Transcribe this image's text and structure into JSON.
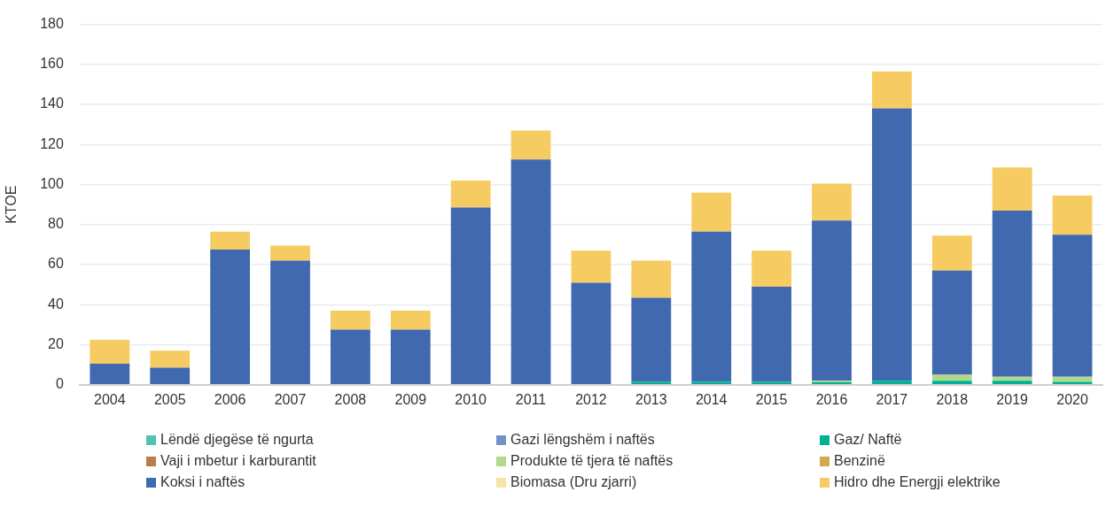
{
  "chart_data": {
    "type": "bar",
    "stacked": true,
    "ylabel": "KTOE",
    "categories": [
      "2004",
      "2005",
      "2006",
      "2007",
      "2008",
      "2009",
      "2010",
      "2011",
      "2012",
      "2013",
      "2014",
      "2015",
      "2016",
      "2017",
      "2018",
      "2019",
      "2020"
    ],
    "ylim": [
      0,
      180
    ],
    "yticks": [
      0,
      20,
      40,
      60,
      80,
      100,
      120,
      140,
      160,
      180
    ],
    "grid": "y",
    "legend": "bottom",
    "series": [
      {
        "name": "Lëndë djegëse të ngurta",
        "color": "#4ec5b3",
        "values": [
          0,
          0,
          0,
          0,
          0,
          0,
          0,
          0,
          0,
          0,
          0,
          0,
          0,
          0,
          0,
          0,
          0
        ]
      },
      {
        "name": "Gazi lëngshëm i naftës",
        "color": "#7393c8",
        "values": [
          0,
          0,
          0,
          0,
          0,
          0,
          0,
          0,
          0,
          0,
          0,
          0,
          0,
          0,
          0,
          0,
          0
        ]
      },
      {
        "name": "Gaz/ Naftë",
        "color": "#00b294",
        "values": [
          0,
          0,
          0,
          0,
          0.3,
          0.3,
          0.3,
          0.3,
          0.3,
          1.5,
          1.5,
          1.5,
          1.2,
          2,
          2,
          2,
          1.5
        ]
      },
      {
        "name": "Vaji i mbetur i karburantit",
        "color": "#b97d4b",
        "values": [
          0,
          0,
          0,
          0,
          0,
          0,
          0,
          0,
          0,
          0,
          0,
          0,
          0,
          0,
          0,
          0,
          0
        ]
      },
      {
        "name": "Produkte të tjera të naftës",
        "color": "#b3d78b",
        "values": [
          0,
          0,
          0,
          0,
          0,
          0,
          0,
          0,
          0,
          0,
          0,
          0,
          0.8,
          0,
          3,
          2,
          2.5
        ]
      },
      {
        "name": "Benzinë",
        "color": "#d4a94c",
        "values": [
          0,
          0,
          0,
          0,
          0,
          0,
          0,
          0,
          0,
          0,
          0,
          0,
          0,
          0,
          0,
          0,
          0
        ]
      },
      {
        "name": "Koksi i naftës",
        "color": "#4169b0",
        "values": [
          10.5,
          8.5,
          67.5,
          62,
          27.2,
          27.2,
          88.2,
          112.2,
          50.7,
          42,
          75,
          47.5,
          80,
          136,
          52,
          83,
          71
        ]
      },
      {
        "name": "Biomasa (Dru zjarri)",
        "color": "#f9e2a6",
        "values": [
          0,
          0,
          0,
          0,
          0,
          0,
          0,
          0,
          0,
          0,
          0,
          0,
          0,
          0,
          0,
          0,
          0
        ]
      },
      {
        "name": "Hidro dhe Energji elektrike",
        "color": "#f6cb62",
        "values": [
          12,
          8.5,
          9,
          7.5,
          9.5,
          9.5,
          13.5,
          14.5,
          16,
          18.5,
          19.5,
          18,
          18.5,
          18.5,
          17.5,
          21.5,
          19.5
        ]
      }
    ]
  }
}
